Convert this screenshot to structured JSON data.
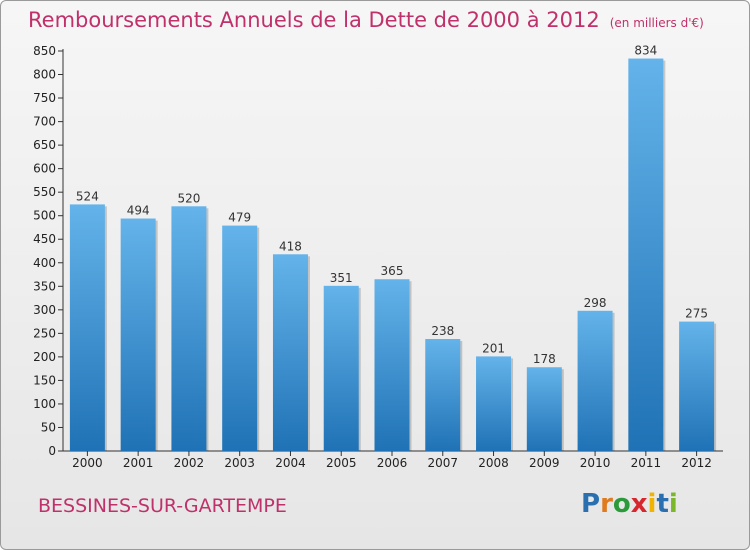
{
  "title": "Remboursements Annuels de la Dette de 2000 à 2012",
  "subtitle": "(en milliers d'€)",
  "commune": "BESSINES-SUR-GARTEMPE",
  "logo": {
    "letters": [
      "P",
      "r",
      "o",
      "x",
      "i",
      "t",
      "i"
    ],
    "colors": [
      "#2a6fb0",
      "#e07a1f",
      "#2a9a3a",
      "#d8262e",
      "#f0b400",
      "#2a6fb0",
      "#7ab82a"
    ]
  },
  "colors": {
    "bar_light": "#64b3ea",
    "bar_dark": "#1f72b5",
    "accent": "#c0306a"
  },
  "chart_data": {
    "type": "bar",
    "title": "Remboursements Annuels de la Dette de 2000 à 2012",
    "subtitle": "(en milliers d'€)",
    "xlabel": "",
    "ylabel": "",
    "categories": [
      "2000",
      "2001",
      "2002",
      "2003",
      "2004",
      "2005",
      "2006",
      "2007",
      "2008",
      "2009",
      "2010",
      "2011",
      "2012"
    ],
    "values": [
      524,
      494,
      520,
      479,
      418,
      351,
      365,
      238,
      201,
      178,
      298,
      834,
      275
    ],
    "ylim": [
      0,
      850
    ],
    "yticks": [
      0,
      50,
      100,
      150,
      200,
      250,
      300,
      350,
      400,
      450,
      500,
      550,
      600,
      650,
      700,
      750,
      800,
      850
    ],
    "grid": false,
    "legend": "none"
  }
}
